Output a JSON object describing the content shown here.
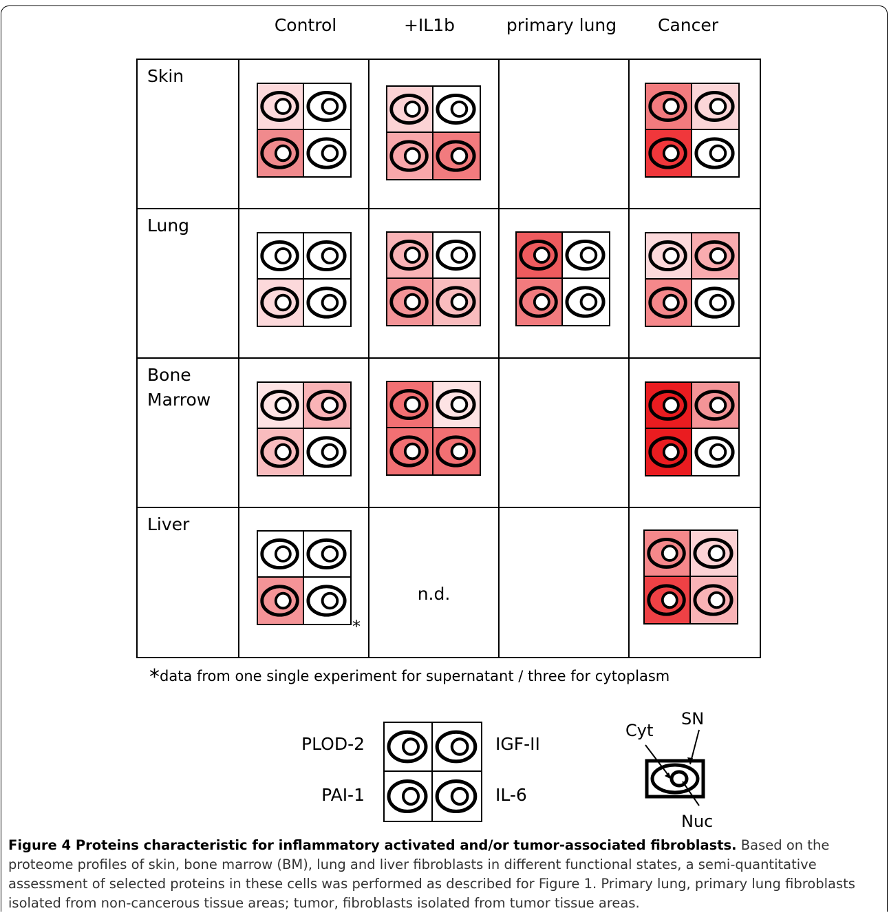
{
  "columns": [
    "Control",
    "+IL1b",
    "primary lung",
    "Cancer"
  ],
  "rows": [
    {
      "label": "Skin",
      "cells": [
        [
          "#fcd9db",
          "#ffffff",
          "#f08a8d",
          "#ffffff"
        ],
        [
          "#fcd3d5",
          "#ffffff",
          "#f9a7aa",
          "#f27b7e"
        ],
        null,
        [
          "#f27b7e",
          "#fbd6d8",
          "#f0373b",
          "#ffffff"
        ]
      ]
    },
    {
      "label": "Lung",
      "cells": [
        [
          "#ffffff",
          "#ffffff",
          "#fcd9db",
          "#ffffff"
        ],
        [
          "#f9b3b6",
          "#ffffff",
          "#f49497",
          "#f9bcbe"
        ],
        [
          "#ee5b5e",
          "#ffffff",
          "#f27b7e",
          "#ffffff"
        ],
        [
          "#fcd9db",
          "#f9acaf",
          "#f5888b",
          "#ffffff"
        ]
      ]
    },
    {
      "label": "Bone\nMarrow",
      "cells": [
        [
          "#fde3e4",
          "#f9b3b6",
          "#f9bcbe",
          "#ffffff"
        ],
        [
          "#f27073",
          "#fde3e4",
          "#f27073",
          "#f27073"
        ],
        null,
        [
          "#ea1c20",
          "#f49497",
          "#ea1c20",
          "#ffffff"
        ]
      ]
    },
    {
      "label": "Liver",
      "cells": [
        [
          "#ffffff",
          "#ffffff",
          "#f49497",
          "#ffffff"
        ],
        "n.d.",
        null,
        [
          "#f5888b",
          "#fcd3d5",
          "#ee4145",
          "#f9b3b6"
        ]
      ]
    }
  ],
  "asterisk": "*",
  "footnote": {
    "symbol": "*",
    "text": "data from one single experiment for supernatant / three for cytoplasm"
  },
  "legend": {
    "top_left": "PLOD-2",
    "bottom_left": "PAI-1",
    "top_right": "IGF-II",
    "bottom_right": "IL-6"
  },
  "schematic": {
    "sn": "SN",
    "cyt": "Cyt",
    "nuc": "Nuc"
  },
  "caption": {
    "title": "Figure 4 Proteins characteristic for inflammatory activated and/or tumor-associated fibroblasts.",
    "body": " Based on the proteome profiles of skin, bone marrow (BM), lung and liver fibroblasts in different functional states, a semi-quantitative assessment of selected proteins in these cells was performed as described for Figure 1. Primary lung, primary lung fibroblasts isolated from non-cancerous tissue areas; tumor, fibroblasts isolated from tumor tissue areas."
  }
}
